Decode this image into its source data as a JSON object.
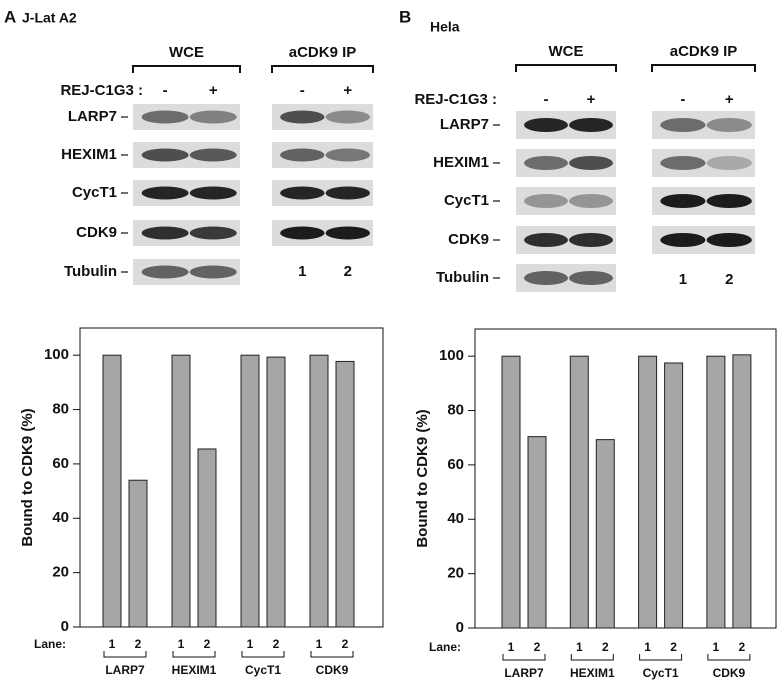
{
  "panels": [
    {
      "letter": "A",
      "cell_line": "J-Lat A2",
      "groups": [
        "WCE",
        "aCDK9 IP"
      ],
      "treatment": "REJ-C1G3 :",
      "signs": [
        "-",
        "+"
      ],
      "rows": [
        "LARP7",
        "HEXIM1",
        "CycT1",
        "CDK9",
        "Tubulin"
      ],
      "lanes": [
        "1",
        "2"
      ]
    },
    {
      "letter": "B",
      "cell_line": "Hela",
      "groups": [
        "WCE",
        "aCDK9 IP"
      ],
      "treatment": "REJ-C1G3 :",
      "signs": [
        "-",
        "+"
      ],
      "rows": [
        "LARP7",
        "HEXIM1",
        "CycT1",
        "CDK9",
        "Tubulin"
      ],
      "lanes": [
        "1",
        "2"
      ]
    }
  ],
  "chart_data": [
    {
      "type": "bar",
      "y_label": "Bound to CDK9 (%)",
      "x_label": "Lane:",
      "categories": [
        "1",
        "2",
        "1",
        "2",
        "1",
        "2",
        "1",
        "2"
      ],
      "groups": [
        "LARP7",
        "HEXIM1",
        "CycT1",
        "CDK9"
      ],
      "values": [
        100,
        54,
        100,
        65.5,
        100,
        99.3,
        100,
        97.7
      ],
      "color": "#a6a6a6",
      "ylim": [
        0,
        110
      ],
      "yticks": [
        0,
        20,
        40,
        60,
        80,
        100
      ]
    },
    {
      "type": "bar",
      "y_label": "Bound to CDK9 (%)",
      "x_label": "Lane:",
      "categories": [
        "1",
        "2",
        "1",
        "2",
        "1",
        "2",
        "1",
        "2"
      ],
      "groups": [
        "LARP7",
        "HEXIM1",
        "CycT1",
        "CDK9"
      ],
      "values": [
        100,
        70.4,
        100,
        69.3,
        100,
        97.5,
        100,
        100.5
      ],
      "color": "#a6a6a6",
      "ylim": [
        0,
        110
      ],
      "yticks": [
        0,
        20,
        40,
        60,
        80,
        100
      ]
    }
  ]
}
